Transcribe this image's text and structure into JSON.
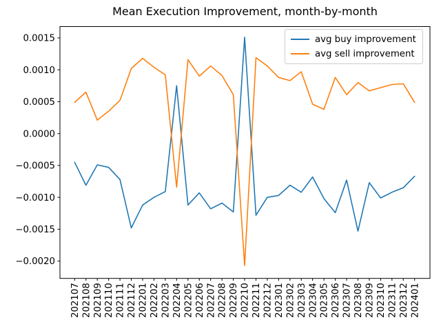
{
  "chart_data": {
    "type": "line",
    "title": "Mean Execution Improvement, month-by-month",
    "xlabel": "",
    "ylabel": "",
    "grid": false,
    "legend_position": "upper right",
    "ylim": [
      -0.002271,
      0.001678
    ],
    "yticks": [
      0.0015,
      0.001,
      0.0005,
      0.0,
      -0.0005,
      -0.001,
      -0.0015,
      -0.002
    ],
    "categories": [
      "202107",
      "202108",
      "202109",
      "202110",
      "202111",
      "202112",
      "202201",
      "202202",
      "202203",
      "202204",
      "202205",
      "202206",
      "202207",
      "202208",
      "202209",
      "202210",
      "202211",
      "202212",
      "202301",
      "202302",
      "202303",
      "202304",
      "202305",
      "202306",
      "202307",
      "202308",
      "202309",
      "202310",
      "202311",
      "202312",
      "202401"
    ],
    "series": [
      {
        "name": "avg buy improvement",
        "color": "#1f77b4",
        "values": [
          -0.00045,
          -0.00081,
          -0.00049,
          -0.00053,
          -0.00072,
          -0.00148,
          -0.00112,
          -0.001,
          -0.00091,
          0.00075,
          -0.00112,
          -0.00093,
          -0.00118,
          -0.00109,
          -0.00123,
          0.00151,
          -0.00128,
          -0.001,
          -0.00097,
          -0.00081,
          -0.00092,
          -0.00068,
          -0.00102,
          -0.00124,
          -0.00073,
          -0.00153,
          -0.00077,
          -0.00101,
          -0.00092,
          -0.00085,
          -0.00067
        ]
      },
      {
        "name": "avg sell improvement",
        "color": "#ff7f0e",
        "values": [
          0.00049,
          0.00065,
          0.00021,
          0.00035,
          0.00052,
          0.00102,
          0.00118,
          0.00104,
          0.00092,
          -0.00084,
          0.00116,
          0.0009,
          0.00106,
          0.00091,
          0.00061,
          -0.00207,
          0.00119,
          0.00106,
          0.00088,
          0.00083,
          0.00097,
          0.00046,
          0.00038,
          0.00088,
          0.00061,
          0.0008,
          0.00067,
          0.00072,
          0.00077,
          0.00078,
          0.00049
        ]
      }
    ]
  }
}
